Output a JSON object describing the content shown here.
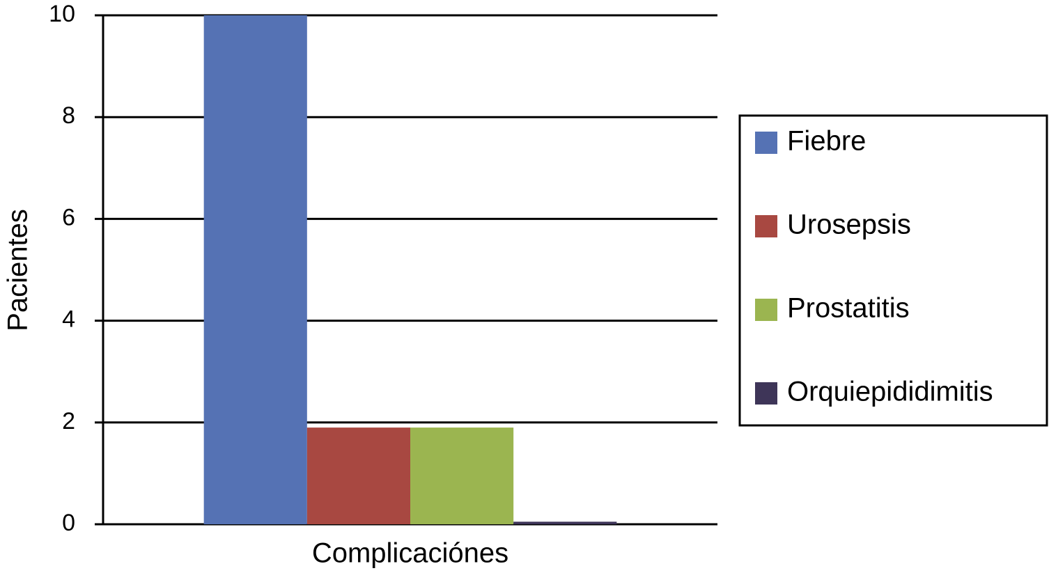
{
  "chart_data": {
    "type": "bar",
    "y_label": "Pacientes",
    "categories": [
      "Complicaciónes"
    ],
    "series": [
      {
        "name": "Fiebre",
        "color": "#5572b4",
        "values": [
          10
        ]
      },
      {
        "name": "Urosepsis",
        "color": "#a84841",
        "values": [
          1.9
        ]
      },
      {
        "name": "Prostatitis",
        "color": "#9bb550",
        "values": [
          1.9
        ]
      },
      {
        "name": "Orquiepididimitis",
        "color": "#3e3558",
        "values": [
          0.05
        ]
      }
    ],
    "ylim": [
      0,
      10
    ],
    "yticks": [
      0,
      2,
      4,
      6,
      8,
      10
    ],
    "grid": true,
    "legend": "right"
  }
}
